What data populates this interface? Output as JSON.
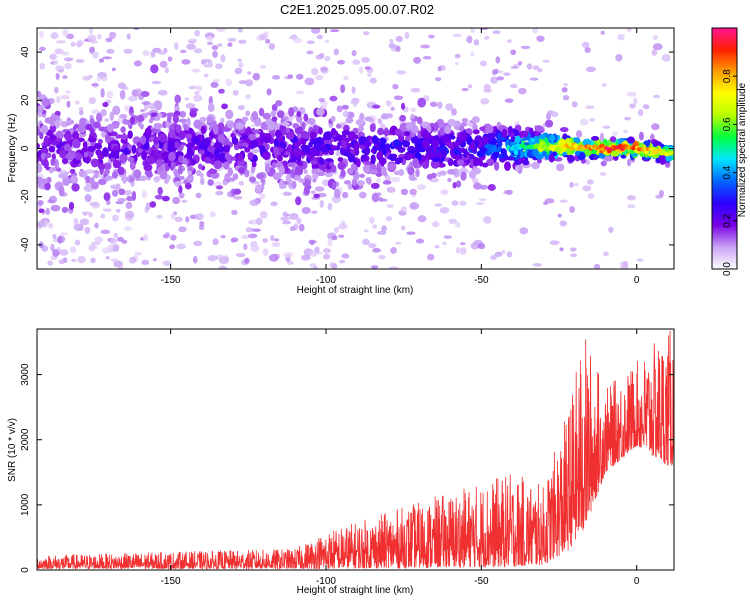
{
  "figure": {
    "title": "C2E1.2025.095.00.07.R02"
  },
  "chart_data": [
    {
      "type": "heatmap",
      "title": "C2E1.2025.095.00.07.R02",
      "xlabel": "Height of straight line (km)",
      "ylabel": "Frequency (Hz)",
      "xlim": [
        -193,
        12
      ],
      "ylim": [
        -50,
        50
      ],
      "x_ticks": [
        -150,
        -100,
        -50,
        0
      ],
      "y_ticks": [
        -40,
        -20,
        0,
        20,
        40
      ],
      "colorbar": {
        "label": "Normalized spectral amplitude",
        "range": [
          0,
          1
        ],
        "ticks": [
          0.0,
          0.2,
          0.4,
          0.6,
          0.8
        ],
        "colormap": [
          "#ffffff",
          "#c9a3f5",
          "#7a00e6",
          "#2a00ff",
          "#0066ff",
          "#00e5ff",
          "#00ff44",
          "#b4ff00",
          "#ffff00",
          "#ffa000",
          "#ff2000",
          "#ff1493"
        ]
      },
      "ridge": {
        "description_points": [
          {
            "x": -190,
            "freq_center": 0,
            "half_width": 10,
            "amplitude": 0.2
          },
          {
            "x": -100,
            "freq_center": 0,
            "half_width": 8,
            "amplitude": 0.25
          },
          {
            "x": -50,
            "freq_center": 0,
            "half_width": 6,
            "amplitude": 0.3
          },
          {
            "x": -25,
            "freq_center": 1,
            "half_width": 3,
            "amplitude": 0.75
          },
          {
            "x": -10,
            "freq_center": 0,
            "half_width": 2,
            "amplitude": 0.95
          },
          {
            "x": 0,
            "freq_center": 0,
            "half_width": 2,
            "amplitude": 0.9
          },
          {
            "x": 10,
            "freq_center": -2,
            "half_width": 2,
            "amplitude": 0.7
          }
        ]
      },
      "grid": false
    },
    {
      "type": "line",
      "xlabel": "Height of straight line (km)",
      "ylabel": "SNR (10 * v/v)",
      "xlim": [
        -193,
        12
      ],
      "ylim": [
        0,
        3700
      ],
      "x_ticks": [
        -150,
        -100,
        -50,
        0
      ],
      "y_ticks": [
        0,
        1000,
        2000,
        3000
      ],
      "color": "#f03030",
      "envelope": [
        {
          "x": -190,
          "low": 20,
          "high": 230
        },
        {
          "x": -150,
          "low": 20,
          "high": 280
        },
        {
          "x": -110,
          "low": 20,
          "high": 330
        },
        {
          "x": -100,
          "low": 20,
          "high": 600
        },
        {
          "x": -80,
          "low": 30,
          "high": 900
        },
        {
          "x": -60,
          "low": 40,
          "high": 1200
        },
        {
          "x": -40,
          "low": 50,
          "high": 1500
        },
        {
          "x": -30,
          "low": 80,
          "high": 1300
        },
        {
          "x": -22,
          "low": 300,
          "high": 2500
        },
        {
          "x": -17,
          "low": 600,
          "high": 3700
        },
        {
          "x": -10,
          "low": 1500,
          "high": 2800
        },
        {
          "x": 0,
          "low": 1900,
          "high": 3200
        },
        {
          "x": 10,
          "low": 1600,
          "high": 3700
        }
      ],
      "grid": false
    }
  ]
}
